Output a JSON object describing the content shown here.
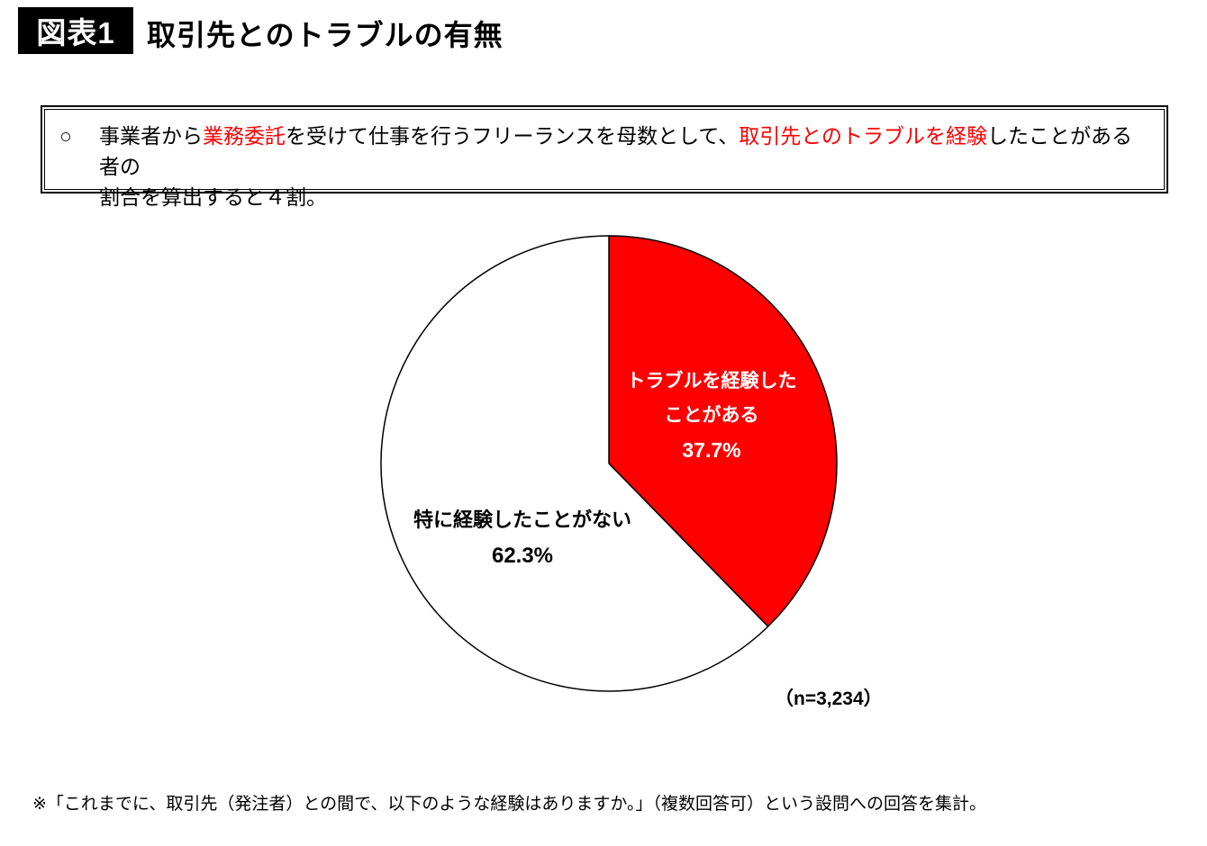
{
  "header": {
    "badge": "図表1",
    "title": "取引先とのトラブルの有無"
  },
  "summary": {
    "bullet": "○",
    "parts": [
      {
        "text": "事業者から",
        "red": false,
        "br_after": false
      },
      {
        "text": "業務委託",
        "red": true,
        "br_after": false
      },
      {
        "text": "を受けて仕事を行うフリーランスを母数として、",
        "red": false,
        "br_after": false
      },
      {
        "text": "取引先とのトラブルを経験",
        "red": true,
        "br_after": false
      },
      {
        "text": "したことがある者の",
        "red": false,
        "br_after": true
      },
      {
        "text": "割合を算出すると４割。",
        "red": false,
        "br_after": false
      }
    ]
  },
  "chart_data": {
    "type": "pie",
    "title": "取引先とのトラブルの有無",
    "labels": [
      "トラブルを経験したことがある",
      "特に経験したことがない"
    ],
    "values": [
      37.7,
      62.3
    ],
    "colors": [
      "#ff0000",
      "#ffffff"
    ],
    "stroke_color": "#000000",
    "label_lines": [
      [
        "トラブルを経験した",
        "ことがある"
      ],
      [
        "特に経験したことがない"
      ]
    ],
    "value_labels": [
      "37.7%",
      "62.3%"
    ],
    "n_label": "（n=3,234）",
    "start_angle_deg": 0,
    "direction": "clockwise",
    "legend": "none"
  },
  "footnote": "※「これまでに、取引先（発注者）との間で、以下のような経験はありますか。」（複数回答可）という設問への回答を集計。"
}
